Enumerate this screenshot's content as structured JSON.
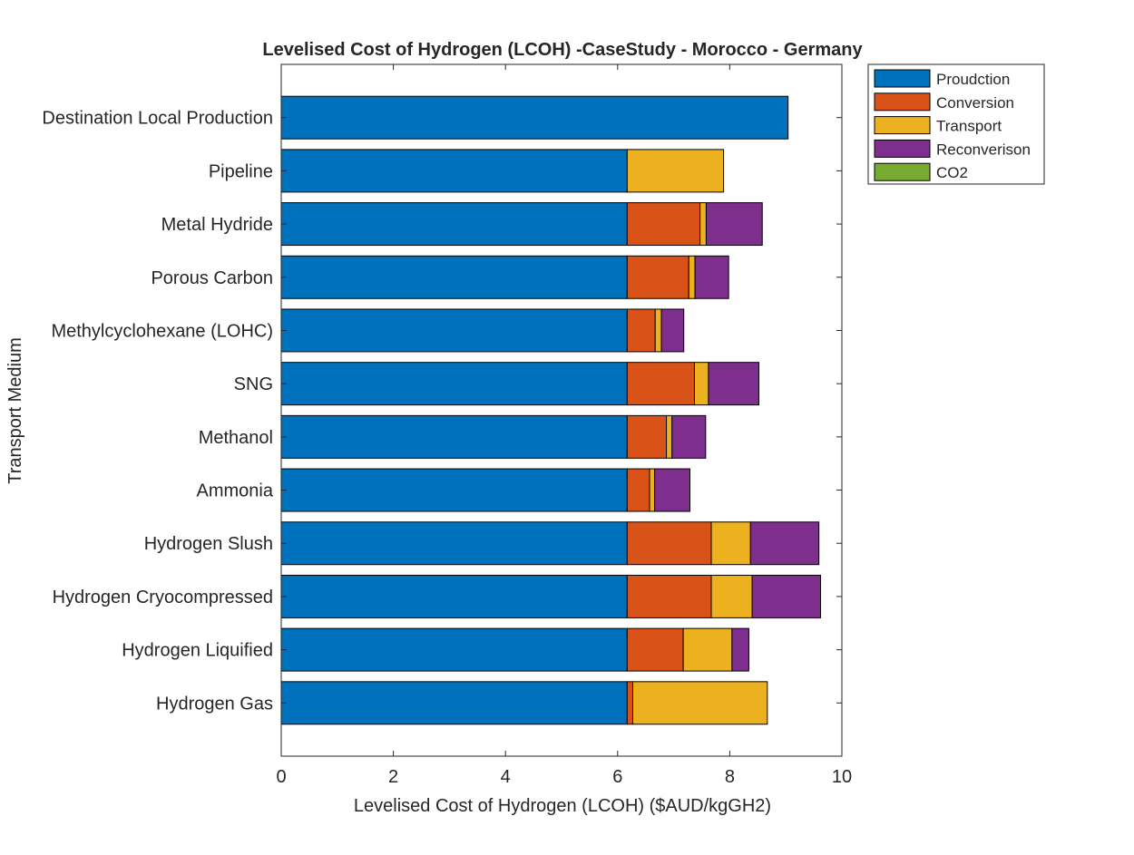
{
  "chart_data": {
    "type": "bar",
    "orientation": "horizontal",
    "stacked": true,
    "title": "Levelised Cost of Hydrogen (LCOH) -CaseStudy - Morocco - Germany",
    "xlabel": "Levelised Cost of Hydrogen (LCOH) ($AUD/kgGH2)",
    "ylabel": "Transport Medium",
    "xlim": [
      0,
      10
    ],
    "xticks": [
      "0",
      "2",
      "4",
      "6",
      "8",
      "10"
    ],
    "grid": false,
    "legend_position": "outside-top-right",
    "categories": [
      "Destination Local Production",
      "Pipeline",
      "Metal Hydride",
      "Porous Carbon",
      "Methylcyclohexane (LOHC)",
      "SNG",
      "Methanol",
      "Ammonia",
      "Hydrogen Slush",
      "Hydrogen Cryocompressed",
      "Hydrogen Liquified",
      "Hydrogen Gas"
    ],
    "series": [
      {
        "name": "Proudction",
        "color": "#0072bd",
        "values": [
          9.04,
          6.17,
          6.17,
          6.17,
          6.17,
          6.17,
          6.17,
          6.17,
          6.17,
          6.17,
          6.17,
          6.17
        ]
      },
      {
        "name": "Conversion",
        "color": "#d95319",
        "values": [
          0,
          0,
          1.3,
          1.1,
          0.5,
          1.2,
          0.7,
          0.4,
          1.5,
          1.5,
          1.0,
          0.1
        ]
      },
      {
        "name": "Transport",
        "color": "#edb120",
        "values": [
          0,
          1.72,
          0.11,
          0.11,
          0.11,
          0.25,
          0.1,
          0.09,
          0.7,
          0.73,
          0.87,
          2.4
        ]
      },
      {
        "name": "Reconverison",
        "color": "#7e2f8e",
        "values": [
          0,
          0,
          1.0,
          0.6,
          0.4,
          0.9,
          0.6,
          0.63,
          1.22,
          1.22,
          0.3,
          0
        ]
      },
      {
        "name": "CO2",
        "color": "#77ac30",
        "values": [
          0,
          0,
          0,
          0,
          0,
          0,
          0,
          0,
          0,
          0,
          0,
          0
        ]
      }
    ]
  }
}
